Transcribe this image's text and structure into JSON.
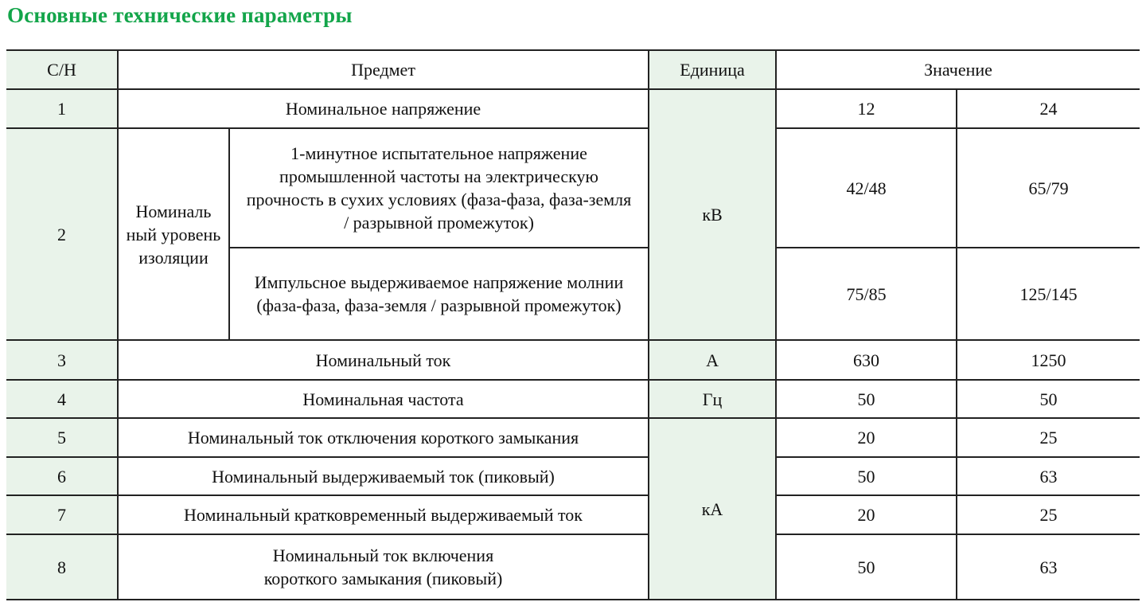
{
  "title": "Основные технические параметры",
  "header": {
    "sn": "С/Н",
    "item": "Предмет",
    "unit": "Единица",
    "value": "Значение"
  },
  "rows": {
    "r1": {
      "sn": "1",
      "item": "Номинальное напряжение",
      "v1": "12",
      "v2": "24"
    },
    "r2": {
      "sn": "2",
      "group": "Номиналь ный уровень изоляции",
      "a": {
        "item": "1-минутное испытательное напряжение промышленной частоты на электрическую прочность в сухих условиях (фаза-фаза, фаза-земля / разрывной промежуток)",
        "v1": "42/48",
        "v2": "65/79"
      },
      "b": {
        "item": "Импульсное выдерживаемое напряжение молнии (фаза-фаза, фаза-земля / разрывной промежуток)",
        "v1": "75/85",
        "v2": "125/145"
      }
    },
    "unit_kv": "кВ",
    "r3": {
      "sn": "3",
      "item": "Номинальный ток",
      "unit": "А",
      "v1": "630",
      "v2": "1250"
    },
    "r4": {
      "sn": "4",
      "item": "Номинальная частота",
      "unit": "Гц",
      "v1": "50",
      "v2": "50"
    },
    "unit_ka": "кА",
    "r5": {
      "sn": "5",
      "item": "Номинальный ток отключения короткого замыкания",
      "v1": "20",
      "v2": "25"
    },
    "r6": {
      "sn": "6",
      "item": "Номинальный выдерживаемый ток (пиковый)",
      "v1": "50",
      "v2": "63"
    },
    "r7": {
      "sn": "7",
      "item": "Номинальный кратковременный выдерживаемый ток",
      "v1": "20",
      "v2": "25"
    },
    "r8": {
      "sn": "8",
      "item": "Номинальный ток включения короткого замыкания (пиковый)",
      "v1": "50",
      "v2": "63"
    }
  },
  "colors": {
    "title": "#13a54a",
    "shade": "#e9f3ea"
  }
}
